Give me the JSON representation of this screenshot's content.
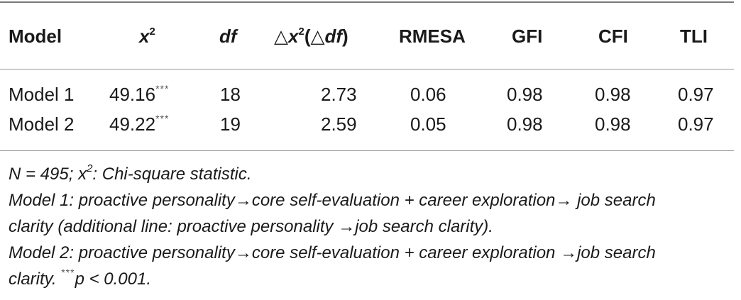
{
  "table": {
    "headers": {
      "model": "Model",
      "chi_base": "x",
      "chi_sup": "2",
      "df": "df",
      "delta_sym1": "△",
      "delta_x": "x",
      "delta_sup": "2",
      "delta_paren_open": "(",
      "delta_sym2": "△",
      "delta_df": "df",
      "delta_paren_close": ")",
      "rmesa": "RMESA",
      "gfi": "GFI",
      "cfi": "CFI",
      "tli": "TLI"
    },
    "rows": [
      {
        "model": "Model 1",
        "chi": "49.16",
        "chi_sig": "***",
        "df": "18",
        "delta": "2.73",
        "rmesa": "0.06",
        "gfi": "0.98",
        "cfi": "0.98",
        "tli": "0.97"
      },
      {
        "model": "Model 2",
        "chi": "49.22",
        "chi_sig": "***",
        "df": "19",
        "delta": "2.59",
        "rmesa": "0.05",
        "gfi": "0.98",
        "cfi": "0.98",
        "tli": "0.97"
      }
    ]
  },
  "notes": {
    "line1_pre": "N = 495; x",
    "line1_sup": "2",
    "line1_post": ": Chi-square statistic.",
    "line2": "Model 1: proactive personality→core self-evaluation + career exploration→ job search",
    "line3": "clarity (additional line: proactive personality →job search clarity).",
    "line4": "Model 2: proactive personality→core self-evaluation + career exploration →job search",
    "line5_pre": "clarity. ",
    "line5_sup": "***",
    "line5_post": "p < 0.001."
  }
}
